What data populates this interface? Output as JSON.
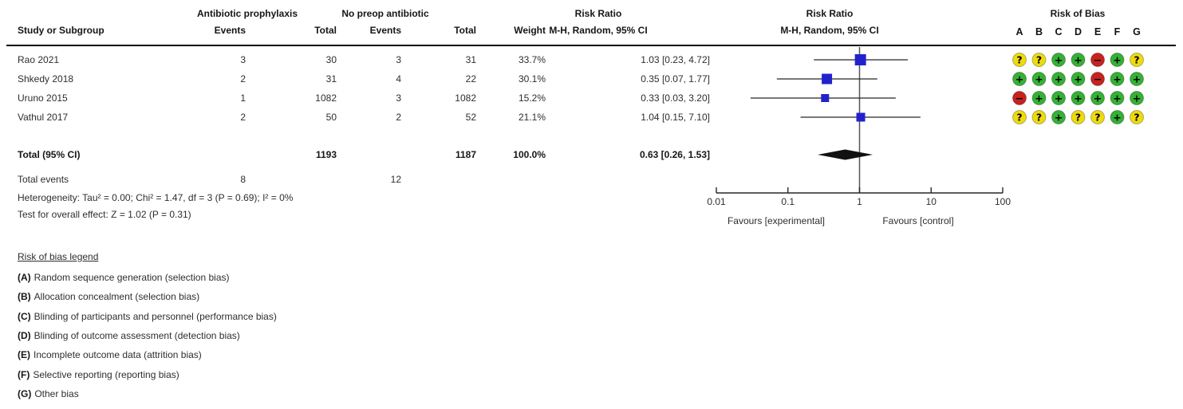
{
  "table": {
    "group1_header": "Antibiotic prophylaxis",
    "group2_header": "No preop antibiotic",
    "col_study": "Study or Subgroup",
    "col_events": "Events",
    "col_total": "Total",
    "col_weight": "Weight",
    "rr_col_title": "Risk Ratio",
    "rr_col_sub": "M-H, Random, 95% CI",
    "plot_col_title": "Risk Ratio",
    "plot_col_sub": "M-H, Random, 95% CI",
    "rows": [
      {
        "study": "Rao 2021",
        "events1": "3",
        "total1": "30",
        "events2": "3",
        "total2": "31",
        "weight": "33.7%",
        "rr": "1.03 [0.23, 4.72]"
      },
      {
        "study": "Shkedy 2018",
        "events1": "2",
        "total1": "31",
        "events2": "4",
        "total2": "22",
        "weight": "30.1%",
        "rr": "0.35 [0.07, 1.77]"
      },
      {
        "study": "Uruno 2015",
        "events1": "1",
        "total1": "1082",
        "events2": "3",
        "total2": "1082",
        "weight": "15.2%",
        "rr": "0.33 [0.03, 3.20]"
      },
      {
        "study": "Vathul 2017",
        "events1": "2",
        "total1": "50",
        "events2": "2",
        "total2": "52",
        "weight": "21.1%",
        "rr": "1.04 [0.15, 7.10]"
      }
    ],
    "total_row": {
      "label": "Total (95% CI)",
      "total1": "1193",
      "total2": "1187",
      "weight": "100.0%",
      "rr": "0.63 [0.26, 1.53]"
    },
    "total_events": {
      "label": "Total events",
      "events1": "8",
      "events2": "12"
    },
    "heterogeneity": "Heterogeneity: Tau² = 0.00; Chi² = 1.47, df = 3 (P = 0.69); I² = 0%",
    "overall_effect": "Test for overall effect: Z = 1.02 (P = 0.31)"
  },
  "risk_of_bias": {
    "title": "Risk of Bias",
    "columns": [
      "A",
      "B",
      "C",
      "D",
      "E",
      "F",
      "G"
    ],
    "rows": [
      [
        "?",
        "?",
        "+",
        "+",
        "-",
        "+",
        "?"
      ],
      [
        "+",
        "+",
        "+",
        "+",
        "-",
        "+",
        "+"
      ],
      [
        "-",
        "+",
        "+",
        "+",
        "+",
        "+",
        "+"
      ],
      [
        "?",
        "?",
        "+",
        "?",
        "?",
        "+",
        "?"
      ]
    ],
    "colors": {
      "plus": "#35b135",
      "question": "#eddb0f",
      "minus": "#c62320"
    }
  },
  "legend": {
    "heading": "Risk of bias legend",
    "items": [
      {
        "key": "(A)",
        "text": "Random sequence generation (selection bias)"
      },
      {
        "key": "(B)",
        "text": "Allocation concealment (selection bias)"
      },
      {
        "key": "(C)",
        "text": "Blinding of participants and personnel (performance bias)"
      },
      {
        "key": "(D)",
        "text": "Blinding of outcome assessment (detection bias)"
      },
      {
        "key": "(E)",
        "text": "Incomplete outcome data (attrition bias)"
      },
      {
        "key": "(F)",
        "text": "Selective reporting (reporting bias)"
      },
      {
        "key": "(G)",
        "text": "Other bias"
      }
    ]
  },
  "colors": {
    "square_blue": "#2222cc",
    "line_dark": "#262626",
    "null_line": "#555555",
    "diamond": "#111111"
  },
  "chart_data": {
    "type": "forest",
    "effect_measure": "Risk Ratio",
    "method": "M-H, Random, 95% CI",
    "x_scale": "log",
    "x_range": [
      0.01,
      100
    ],
    "x_ticks": [
      "0.01",
      "0.1",
      "1",
      "10",
      "100"
    ],
    "null_line": 1,
    "favours_left": "Favours [experimental]",
    "favours_right": "Favours [control]",
    "studies": [
      {
        "name": "Rao 2021",
        "exp_events": 3,
        "exp_total": 30,
        "ctrl_events": 3,
        "ctrl_total": 31,
        "weight_pct": 33.7,
        "estimate": 1.03,
        "ci_low": 0.23,
        "ci_high": 4.72
      },
      {
        "name": "Shkedy 2018",
        "exp_events": 2,
        "exp_total": 31,
        "ctrl_events": 4,
        "ctrl_total": 22,
        "weight_pct": 30.1,
        "estimate": 0.35,
        "ci_low": 0.07,
        "ci_high": 1.77
      },
      {
        "name": "Uruno 2015",
        "exp_events": 1,
        "exp_total": 1082,
        "ctrl_events": 3,
        "ctrl_total": 1082,
        "weight_pct": 15.2,
        "estimate": 0.33,
        "ci_low": 0.03,
        "ci_high": 3.2
      },
      {
        "name": "Vathul 2017",
        "exp_events": 2,
        "exp_total": 50,
        "ctrl_events": 2,
        "ctrl_total": 52,
        "weight_pct": 21.1,
        "estimate": 1.04,
        "ci_low": 0.15,
        "ci_high": 7.1
      }
    ],
    "total": {
      "label": "Total (95% CI)",
      "exp_total": 1193,
      "ctrl_total": 1187,
      "weight_pct": 100.0,
      "estimate": 0.63,
      "ci_low": 0.26,
      "ci_high": 1.53,
      "total_events_exp": 8,
      "total_events_ctrl": 12
    },
    "heterogeneity": {
      "tau2": 0.0,
      "chi2": 1.47,
      "df": 3,
      "p": 0.69,
      "i2_pct": 0
    },
    "overall_effect": {
      "z": 1.02,
      "p": 0.31
    }
  }
}
